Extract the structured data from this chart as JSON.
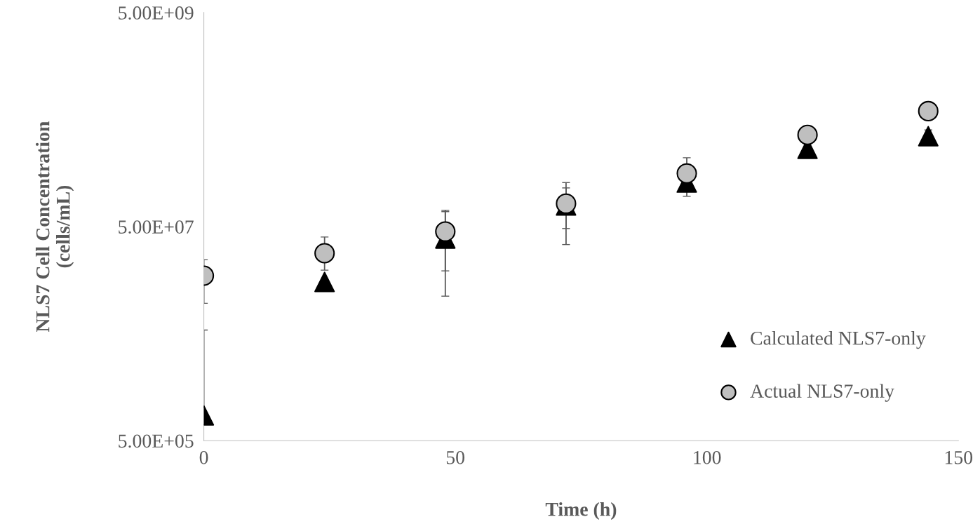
{
  "chart_data": {
    "type": "scatter",
    "xlabel": "Time (h)",
    "ylabel": "NLS7 Cell Concentration\n(cells/mL)",
    "x": [
      0,
      24,
      48,
      72,
      96,
      120,
      144
    ],
    "series": [
      {
        "name": "Calculated NLS7-only",
        "color": "#000000",
        "marker": "triangle",
        "values": [
          860000.0,
          15200000.0,
          38700000.0,
          78700000.0,
          129000000.0,
          267000000.0,
          350000000.0
        ],
        "errors": [
          [
            860000.0,
            5400000.0
          ],
          null,
          [
            11200000.0,
            69000000.0
          ],
          [
            34000000.0,
            115000000.0
          ],
          [
            96000000.0,
            129000000.0
          ],
          null,
          [
            350000000.0,
            400000000.0
          ]
        ]
      },
      {
        "name": "Actual NLS7-only",
        "color": "#bfbfbf",
        "marker": "circle",
        "values": [
          17400000.0,
          28200000.0,
          45000000.0,
          82000000.0,
          157000000.0,
          360000000.0,
          600000000.0
        ],
        "errors": [
          [
            9600000.0,
            24600000.0
          ],
          [
            19600000.0,
            40000000.0
          ],
          [
            19300000.0,
            71000000.0
          ],
          [
            48000000.0,
            129000000.0
          ],
          [
            157000000.0,
            220000000.0
          ],
          null,
          null
        ]
      }
    ],
    "xlim": [
      0,
      150
    ],
    "xticks": [
      0,
      50,
      100,
      150
    ],
    "log": "y",
    "ylim": [
      500000.0,
      5000000000.0
    ],
    "yticks": [
      {
        "value": 500000.0,
        "label": "5.00E+05"
      },
      {
        "value": 50000000.0,
        "label": "5.00E+07"
      },
      {
        "value": 5000000000.0,
        "label": "5.00E+09"
      }
    ],
    "grid": false,
    "legend": "bottom right"
  }
}
